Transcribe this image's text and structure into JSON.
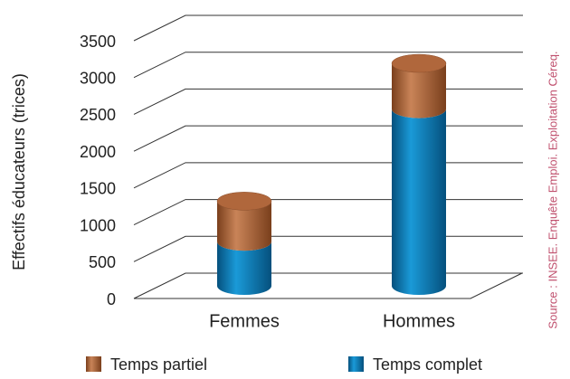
{
  "chart_data": {
    "type": "bar3d-stacked",
    "y_label": "Effectifs éducateurs (trices)",
    "annotation": "Source : INSEE. Enquête Emploi. Exploitation Céreq.",
    "categories": [
      "Femmes",
      "Hommes"
    ],
    "series": [
      {
        "name": "Temps partiel",
        "color": "#b0673c",
        "values": [
          550,
          620
        ]
      },
      {
        "name": "Temps complet",
        "color": "#0b78b3",
        "values": [
          600,
          2400
        ]
      }
    ],
    "ylim": [
      0,
      3500
    ],
    "yticks": [
      0,
      500,
      1000,
      1500,
      2000,
      2500,
      3000,
      3500
    ],
    "grid": true
  }
}
